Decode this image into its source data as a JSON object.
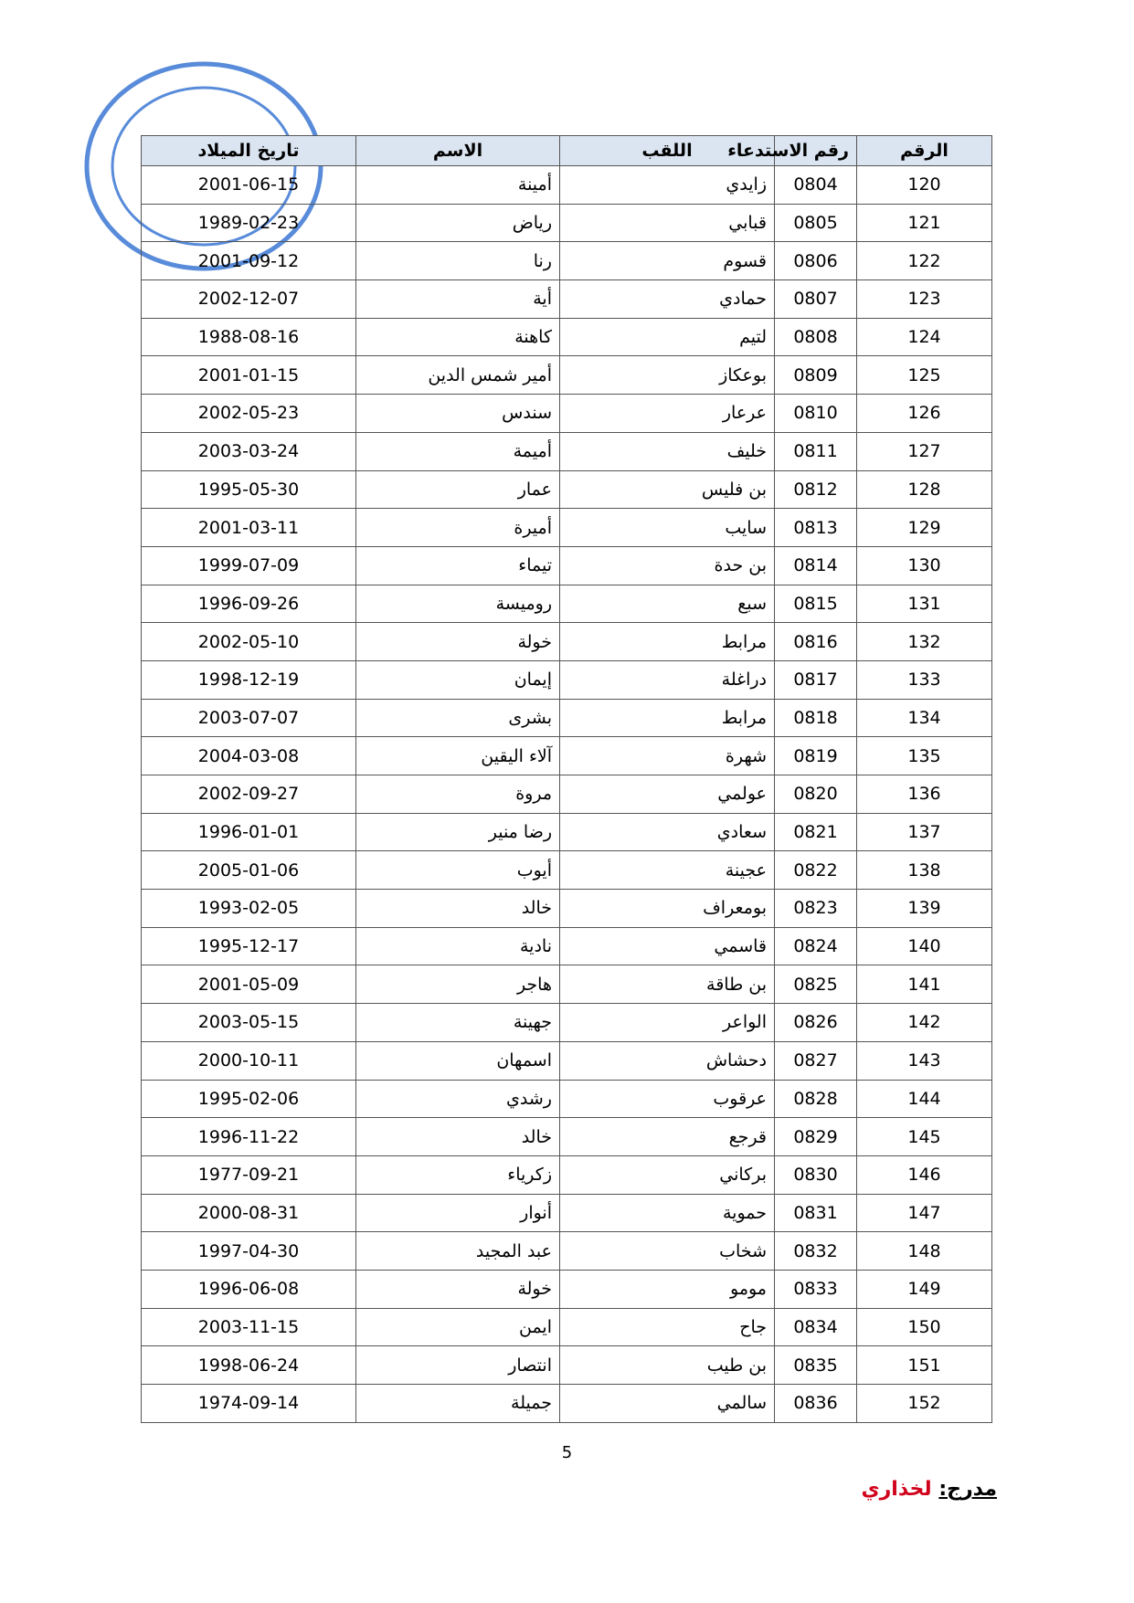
{
  "table": {
    "headers": [
      "الرقم",
      "رقم الاستدعاء",
      "اللقب",
      "الاسم",
      "تاريخ الميلاد"
    ],
    "rows": [
      [
        120,
        "0804",
        "زايدي",
        "أمينة",
        "2001-06-15"
      ],
      [
        121,
        "0805",
        "قبابي",
        "رياض",
        "1989-02-23"
      ],
      [
        122,
        "0806",
        "قسوم",
        "رنا",
        "2001-09-12"
      ],
      [
        123,
        "0807",
        "حمادي",
        "أية",
        "2002-12-07"
      ],
      [
        124,
        "0808",
        "لتيم",
        "كاهنة",
        "1988-08-16"
      ],
      [
        125,
        "0809",
        "بوعكاز",
        "أمير شمس الدين",
        "2001-01-15"
      ],
      [
        126,
        "0810",
        "عرعار",
        "سندس",
        "2002-05-23"
      ],
      [
        127,
        "0811",
        "خليف",
        "أميمة",
        "2003-03-24"
      ],
      [
        128,
        "0812",
        "بن فليس",
        "عمار",
        "1995-05-30"
      ],
      [
        129,
        "0813",
        "سايب",
        "أميرة",
        "2001-03-11"
      ],
      [
        130,
        "0814",
        "بن حدة",
        "تيماء",
        "1999-07-09"
      ],
      [
        131,
        "0815",
        "سبع",
        "روميسة",
        "1996-09-26"
      ],
      [
        132,
        "0816",
        "مرابط",
        "خولة",
        "2002-05-10"
      ],
      [
        133,
        "0817",
        "دراغلة",
        "إيمان",
        "1998-12-19"
      ],
      [
        134,
        "0818",
        "مرابط",
        "بشرى",
        "2003-07-07"
      ],
      [
        135,
        "0819",
        "شهرة",
        "آلاء اليقين",
        "2004-03-08"
      ],
      [
        136,
        "0820",
        "عولمي",
        "مروة",
        "2002-09-27"
      ],
      [
        137,
        "0821",
        "سعادي",
        "رضا منير",
        "1996-01-01"
      ],
      [
        138,
        "0822",
        "عجينة",
        "أيوب",
        "2005-01-06"
      ],
      [
        139,
        "0823",
        "بومعراف",
        "خالد",
        "1993-02-05"
      ],
      [
        140,
        "0824",
        "قاسمي",
        "نادية",
        "1995-12-17"
      ],
      [
        141,
        "0825",
        "بن طاقة",
        "هاجر",
        "2001-05-09"
      ],
      [
        142,
        "0826",
        "الواعر",
        "جهينة",
        "2003-05-15"
      ],
      [
        143,
        "0827",
        "دحشاش",
        "اسمهان",
        "2000-10-11"
      ],
      [
        144,
        "0828",
        "عرقوب",
        "رشدي",
        "1995-02-06"
      ],
      [
        145,
        "0829",
        "قرجع",
        "خالد",
        "1996-11-22"
      ],
      [
        146,
        "0830",
        "بركاني",
        "زكرياء",
        "1977-09-21"
      ],
      [
        147,
        "0831",
        "حموية",
        "أنوار",
        "2000-08-31"
      ],
      [
        148,
        "0832",
        "شخاب",
        "عبد المجيد",
        "1997-04-30"
      ],
      [
        149,
        "0833",
        "مومو",
        "خولة",
        "1996-06-08"
      ],
      [
        150,
        "0834",
        "جاح",
        "ايمن",
        "2003-11-15"
      ],
      [
        151,
        "0835",
        "بن طيب",
        "انتصار",
        "1998-06-24"
      ],
      [
        152,
        "0836",
        "سالمي",
        "جميلة",
        "1974-09-14"
      ]
    ]
  },
  "page_number": 5,
  "footer": {
    "label": "مدرج:",
    "name": "لخذاري"
  }
}
